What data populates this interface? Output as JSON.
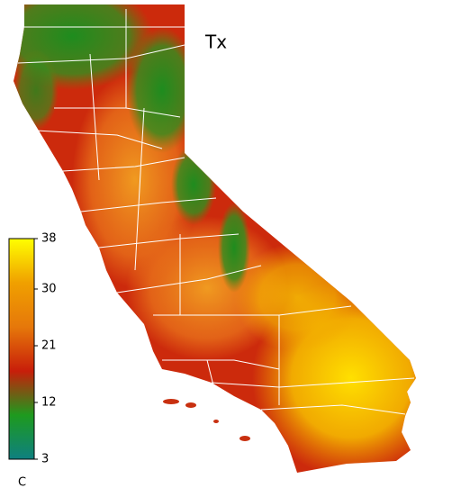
{
  "map": {
    "title": "Tx",
    "colorbar": {
      "unit": "C",
      "range": [
        3,
        38
      ],
      "ticks": [
        38,
        30,
        21,
        12,
        3
      ],
      "colors": [
        "#0e8080",
        "#1e9a1e",
        "#c81e0a",
        "#e6780a",
        "#f0a000",
        "#ffff00"
      ]
    }
  }
}
